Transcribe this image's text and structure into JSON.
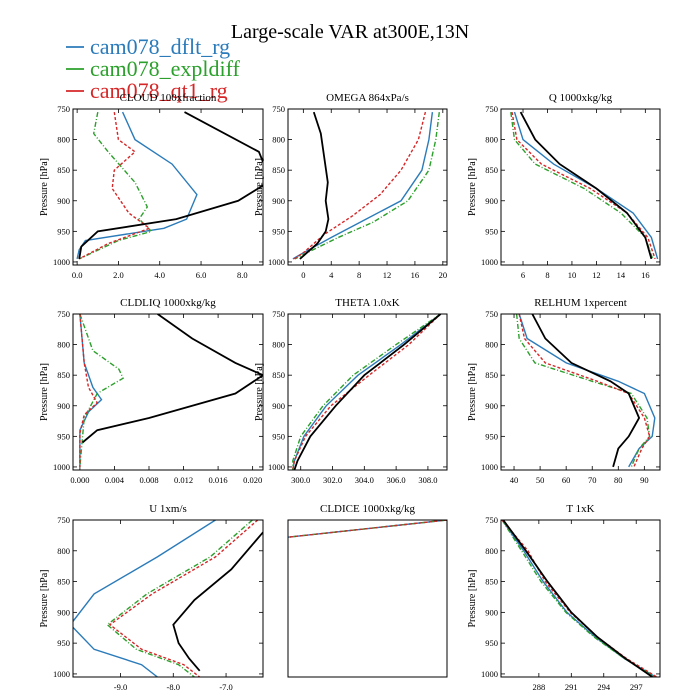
{
  "title": "Large-scale VAR at300E,13N",
  "ylabel": "Pressure [hPa]",
  "legend": [
    {
      "name": "cam078_dflt_rg",
      "color": "#2b7bba"
    },
    {
      "name": "cam078_expldiff",
      "color": "#2ca02c"
    },
    {
      "name": "cam078_qt1_rg",
      "color": "#d62728"
    }
  ],
  "obs_color": "#000000",
  "chart_data": [
    {
      "type": "line",
      "title": "CLOUD 100xfraction",
      "xlim": [
        -0.2,
        9.0
      ],
      "ylim": [
        1005,
        750
      ],
      "xticks": [
        0,
        2,
        4,
        6,
        8
      ],
      "xtick_labels": [
        "0.0",
        "2.0",
        "4.0",
        "6.0",
        "8.0"
      ],
      "yticks": [
        750,
        800,
        850,
        900,
        950,
        1000
      ],
      "obs": {
        "x": [
          5.2,
          8.8,
          9.1,
          9.0,
          7.8,
          4.8,
          1.0,
          0.2,
          0.1
        ],
        "y": [
          755,
          820,
          845,
          875,
          900,
          930,
          950,
          975,
          995
        ]
      },
      "series": [
        {
          "x": [
            2.2,
            2.8,
            4.6,
            5.8,
            5.3,
            4.2,
            0.4,
            0.1,
            0.0
          ],
          "y": [
            755,
            800,
            840,
            890,
            930,
            945,
            965,
            980,
            995
          ]
        },
        {
          "x": [
            1.0,
            0.8,
            1.5,
            2.8,
            3.4,
            3.0,
            3.6,
            2.0,
            0.1
          ],
          "y": [
            755,
            790,
            820,
            870,
            910,
            930,
            950,
            965,
            995
          ]
        },
        {
          "x": [
            1.8,
            2.0,
            2.8,
            1.8,
            1.7,
            2.5,
            3.5,
            1.5,
            0.1
          ],
          "y": [
            755,
            800,
            820,
            850,
            880,
            920,
            945,
            970,
            995
          ]
        }
      ]
    },
    {
      "type": "line",
      "title": "OMEGA 864xPa/s",
      "xlim": [
        -2.2,
        20.6
      ],
      "ylim": [
        1005,
        750
      ],
      "xticks": [
        0,
        4,
        8,
        12,
        16,
        20
      ],
      "xtick_labels": [
        "0",
        "4",
        "8",
        "12",
        "16",
        "20"
      ],
      "yticks": [
        750,
        800,
        850,
        900,
        950,
        1000
      ],
      "obs": {
        "x": [
          1.5,
          2.5,
          3.0,
          3.5,
          3.2,
          3.6,
          3.2,
          2.0,
          -0.5
        ],
        "y": [
          755,
          790,
          830,
          870,
          900,
          930,
          950,
          970,
          995
        ]
      },
      "series": [
        {
          "x": [
            18.5,
            18.0,
            17.0,
            14.0,
            9.0,
            4.0,
            0.0,
            -1.5
          ],
          "y": [
            755,
            800,
            850,
            900,
            930,
            960,
            985,
            995
          ]
        },
        {
          "x": [
            19.5,
            19.0,
            18.0,
            15.0,
            10.0,
            5.0,
            0.5,
            -1.2
          ],
          "y": [
            755,
            800,
            850,
            900,
            935,
            960,
            985,
            995
          ]
        },
        {
          "x": [
            17.5,
            16.5,
            14.0,
            11.0,
            7.0,
            3.0,
            0.0,
            -1.3
          ],
          "y": [
            755,
            800,
            850,
            890,
            925,
            955,
            985,
            995
          ]
        }
      ]
    },
    {
      "type": "line",
      "title": "Q 1000xkg/kg",
      "xlim": [
        4.2,
        17.2
      ],
      "ylim": [
        1005,
        750
      ],
      "xticks": [
        6,
        8,
        10,
        12,
        14,
        16
      ],
      "xtick_labels": [
        "6",
        "8",
        "10",
        "12",
        "14",
        "16"
      ],
      "yticks": [
        750,
        800,
        850,
        900,
        950,
        1000
      ],
      "obs": {
        "x": [
          5.8,
          7.0,
          9.0,
          12.0,
          14.5,
          16.0,
          16.5
        ],
        "y": [
          755,
          800,
          840,
          880,
          920,
          960,
          995
        ]
      },
      "series": [
        {
          "x": [
            5.3,
            6.0,
            8.5,
            12.0,
            15.0,
            16.5,
            17.0
          ],
          "y": [
            755,
            800,
            840,
            880,
            920,
            960,
            995
          ]
        },
        {
          "x": [
            5.0,
            5.3,
            7.0,
            11.0,
            14.0,
            16.0,
            16.6
          ],
          "y": [
            755,
            800,
            840,
            880,
            920,
            960,
            995
          ]
        },
        {
          "x": [
            5.1,
            5.5,
            7.5,
            11.5,
            14.5,
            16.2,
            16.8
          ],
          "y": [
            755,
            800,
            840,
            880,
            920,
            960,
            995
          ]
        }
      ]
    },
    {
      "type": "line",
      "title": "CLDLIQ 1000xkg/kg",
      "xlim": [
        -0.0008,
        0.0212
      ],
      "ylim": [
        1005,
        750
      ],
      "xticks": [
        0,
        0.004,
        0.008,
        0.012,
        0.016,
        0.02
      ],
      "xtick_labels": [
        "0.000",
        "0.004",
        "0.008",
        "0.012",
        "0.016",
        "0.020"
      ],
      "yticks": [
        750,
        800,
        850,
        900,
        950,
        1000
      ],
      "obs": {
        "x": [
          0.009,
          0.013,
          0.018,
          0.0212,
          0.018,
          0.008,
          0.002,
          0.0003
        ],
        "y": [
          750,
          790,
          830,
          850,
          880,
          920,
          940,
          960
        ]
      },
      "series": [
        {
          "x": [
            0.0,
            0.0005,
            0.0015,
            0.0025,
            0.001,
            0.0,
            0.0
          ],
          "y": [
            750,
            830,
            870,
            890,
            910,
            940,
            1000
          ]
        },
        {
          "x": [
            0.0,
            0.0015,
            0.0045,
            0.005,
            0.002,
            0.0005,
            0.0
          ],
          "y": [
            750,
            810,
            840,
            855,
            880,
            920,
            1000
          ]
        },
        {
          "x": [
            0.0,
            0.0005,
            0.001,
            0.002,
            0.0005,
            0.0,
            0.0
          ],
          "y": [
            750,
            830,
            870,
            895,
            915,
            945,
            1000
          ]
        }
      ]
    },
    {
      "type": "line",
      "title": "THETA 1.0xK",
      "xlim": [
        299.2,
        309.2
      ],
      "ylim": [
        1005,
        750
      ],
      "xticks": [
        300,
        302,
        304,
        306,
        308
      ],
      "xtick_labels": [
        "300.0",
        "302.0",
        "304.0",
        "306.0",
        "308.0"
      ],
      "yticks": [
        750,
        800,
        850,
        900,
        950,
        1000
      ],
      "obs": {
        "x": [
          308.8,
          306.5,
          304.0,
          302.2,
          300.6,
          299.8,
          299.6
        ],
        "y": [
          750,
          800,
          850,
          900,
          950,
          990,
          1005
        ]
      },
      "series": [
        {
          "x": [
            308.8,
            306.3,
            303.6,
            301.6,
            300.2,
            299.6,
            299.5
          ],
          "y": [
            750,
            800,
            850,
            900,
            950,
            990,
            1005
          ]
        },
        {
          "x": [
            308.8,
            306.0,
            303.3,
            301.4,
            300.0,
            299.5,
            299.5
          ],
          "y": [
            750,
            800,
            850,
            900,
            950,
            990,
            1005
          ]
        },
        {
          "x": [
            308.8,
            306.8,
            304.3,
            301.9,
            300.3,
            299.6,
            299.5
          ],
          "y": [
            750,
            800,
            850,
            900,
            950,
            990,
            1005
          ]
        }
      ]
    },
    {
      "type": "line",
      "title": "RELHUM 1xpercent",
      "xlim": [
        35,
        96
      ],
      "ylim": [
        1005,
        750
      ],
      "xticks": [
        40,
        50,
        60,
        70,
        80,
        90
      ],
      "xtick_labels": [
        "40",
        "50",
        "60",
        "70",
        "80",
        "90"
      ],
      "yticks": [
        750,
        800,
        850,
        900,
        950,
        1000
      ],
      "obs": {
        "x": [
          47,
          52,
          62,
          77,
          84,
          88,
          84,
          80,
          78
        ],
        "y": [
          750,
          790,
          830,
          860,
          880,
          920,
          950,
          970,
          1000
        ]
      },
      "series": [
        {
          "x": [
            42,
            45,
            60,
            80,
            90,
            94,
            93,
            88,
            84
          ],
          "y": [
            750,
            790,
            830,
            860,
            880,
            920,
            950,
            970,
            1000
          ]
        },
        {
          "x": [
            41,
            42,
            48,
            70,
            85,
            91,
            92,
            88,
            85
          ],
          "y": [
            750,
            790,
            830,
            860,
            880,
            920,
            950,
            970,
            1000
          ]
        },
        {
          "x": [
            42,
            44,
            52,
            72,
            84,
            90,
            92,
            89,
            86
          ],
          "y": [
            750,
            790,
            830,
            860,
            880,
            920,
            950,
            970,
            1000
          ]
        }
      ]
    },
    {
      "type": "line",
      "title": "U 1xm/s",
      "xlim": [
        -9.9,
        -6.3
      ],
      "ylim": [
        1005,
        750
      ],
      "xticks": [
        -9,
        -8,
        -7
      ],
      "xtick_labels": [
        "-9.0",
        "-8.0",
        "-7.0"
      ],
      "yticks": [
        750,
        800,
        850,
        900,
        950,
        1000
      ],
      "obs": {
        "x": [
          -6.3,
          -6.9,
          -7.6,
          -8.0,
          -7.9,
          -7.7,
          -7.5
        ],
        "y": [
          770,
          830,
          880,
          920,
          950,
          975,
          995
        ]
      },
      "series": [
        {
          "x": [
            -7.2,
            -8.3,
            -9.5,
            -9.95,
            -9.5,
            -8.6,
            -8.3
          ],
          "y": [
            750,
            810,
            870,
            920,
            960,
            985,
            1005
          ]
        },
        {
          "x": [
            -6.5,
            -7.3,
            -8.5,
            -9.25,
            -8.7,
            -7.9,
            -7.6
          ],
          "y": [
            750,
            810,
            870,
            920,
            960,
            985,
            1005
          ]
        },
        {
          "x": [
            -6.4,
            -7.2,
            -8.4,
            -9.2,
            -8.6,
            -7.8,
            -7.5
          ],
          "y": [
            750,
            810,
            870,
            920,
            960,
            985,
            1005
          ]
        }
      ]
    },
    {
      "type": "line",
      "title": "CLDICE 1000xkg/kg",
      "xlim": [
        0,
        1
      ],
      "ylim": [
        1005,
        750
      ],
      "xticks": [],
      "xtick_labels": [],
      "yticks": [],
      "obs": {
        "x": [],
        "y": []
      },
      "series": [
        {
          "x": [
            1.0,
            0.0
          ],
          "y": [
            750,
            778
          ]
        },
        {
          "x": [
            1.0,
            0.0
          ],
          "y": [
            750,
            778
          ]
        },
        {
          "x": [
            1.0,
            0.0
          ],
          "y": [
            750,
            778
          ]
        }
      ]
    },
    {
      "type": "line",
      "title": "T 1xK",
      "xlim": [
        284.5,
        299.2
      ],
      "ylim": [
        1005,
        750
      ],
      "xticks": [
        288,
        291,
        294,
        297
      ],
      "xtick_labels": [
        "288",
        "291",
        "294",
        "297"
      ],
      "yticks": [
        750,
        800,
        850,
        900,
        950,
        1000
      ],
      "obs": {
        "x": [
          284.7,
          286.8,
          288.8,
          291.0,
          293.4,
          296.0,
          298.5
        ],
        "y": [
          750,
          800,
          850,
          900,
          940,
          975,
          1005
        ]
      },
      "series": [
        {
          "x": [
            284.6,
            286.6,
            288.4,
            290.6,
            293.2,
            295.9,
            298.8
          ],
          "y": [
            750,
            800,
            850,
            900,
            940,
            975,
            1005
          ]
        },
        {
          "x": [
            284.6,
            286.4,
            288.2,
            290.5,
            293.1,
            295.9,
            298.8
          ],
          "y": [
            750,
            800,
            850,
            900,
            940,
            975,
            1005
          ]
        },
        {
          "x": [
            284.6,
            287.0,
            288.6,
            290.9,
            293.4,
            296.1,
            298.9
          ],
          "y": [
            750,
            800,
            850,
            900,
            940,
            975,
            1005
          ]
        }
      ]
    }
  ]
}
